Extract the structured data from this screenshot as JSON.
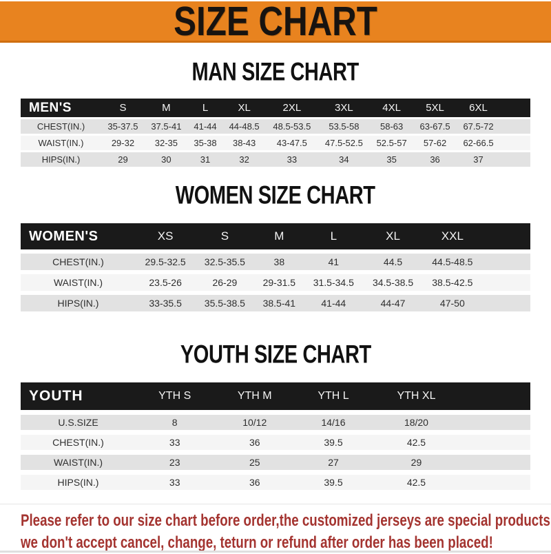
{
  "banner": {
    "title": "SIZE CHART"
  },
  "colors": {
    "banner_orange": "#e8831f",
    "band_black": "#1a1a1a",
    "row_gray": "#e2e2e2",
    "row_light": "#f5f5f5",
    "footer_red": "#a43430"
  },
  "chart_data": [
    {
      "type": "table",
      "title": "MAN SIZE CHART",
      "corner_label": "MEN'S",
      "columns": [
        "S",
        "M",
        "L",
        "XL",
        "2XL",
        "3XL",
        "4XL",
        "5XL",
        "6XL"
      ],
      "rows": [
        {
          "label": "CHEST(IN.)",
          "values": [
            "35-37.5",
            "37.5-41",
            "41-44",
            "44-48.5",
            "48.5-53.5",
            "53.5-58",
            "58-63",
            "63-67.5",
            "67.5-72"
          ]
        },
        {
          "label": "WAIST(IN.)",
          "values": [
            "29-32",
            "32-35",
            "35-38",
            "38-43",
            "43-47.5",
            "47.5-52.5",
            "52.5-57",
            "57-62",
            "62-66.5"
          ]
        },
        {
          "label": "HIPS(IN.)",
          "values": [
            "29",
            "30",
            "31",
            "32",
            "33",
            "34",
            "35",
            "36",
            "37"
          ]
        }
      ]
    },
    {
      "type": "table",
      "title": "WOMEN SIZE CHART",
      "corner_label": "WOMEN'S",
      "columns": [
        "XS",
        "S",
        "M",
        "L",
        "XL",
        "XXL"
      ],
      "rows": [
        {
          "label": "CHEST(IN.)",
          "values": [
            "29.5-32.5",
            "32.5-35.5",
            "38",
            "41",
            "44.5",
            "44.5-48.5"
          ]
        },
        {
          "label": "WAIST(IN.)",
          "values": [
            "23.5-26",
            "26-29",
            "29-31.5",
            "31.5-34.5",
            "34.5-38.5",
            "38.5-42.5"
          ]
        },
        {
          "label": "HIPS(IN.)",
          "values": [
            "33-35.5",
            "35.5-38.5",
            "38.5-41",
            "41-44",
            "44-47",
            "47-50"
          ]
        }
      ]
    },
    {
      "type": "table",
      "title": "YOUTH SIZE CHART",
      "corner_label": "YOUTH",
      "columns": [
        "YTH S",
        "YTH M",
        "YTH L",
        "YTH XL"
      ],
      "rows": [
        {
          "label": "U.S.SIZE",
          "values": [
            "8",
            "10/12",
            "14/16",
            "18/20"
          ]
        },
        {
          "label": "CHEST(IN.)",
          "values": [
            "33",
            "36",
            "39.5",
            "42.5"
          ]
        },
        {
          "label": "WAIST(IN.)",
          "values": [
            "23",
            "25",
            "27",
            "29"
          ]
        },
        {
          "label": "HIPS(IN.)",
          "values": [
            "33",
            "36",
            "39.5",
            "42.5"
          ]
        }
      ]
    }
  ],
  "footer": {
    "line1": "Please refer to our size chart before order,the customized jerseys are special products,",
    "line2": "we don't accept cancel, change, teturn or refund after order has been placed!"
  }
}
